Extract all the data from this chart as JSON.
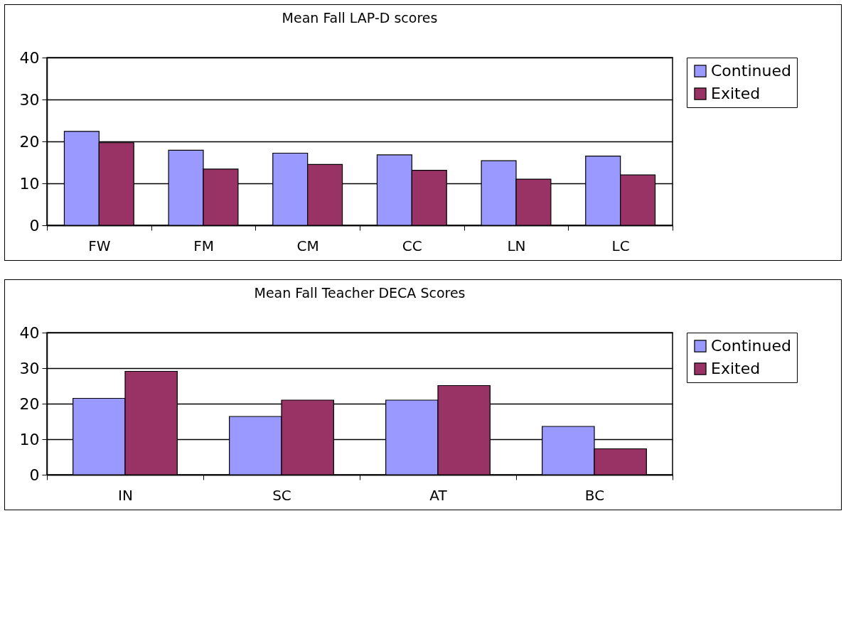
{
  "chart_data": [
    {
      "type": "bar",
      "title": "Mean Fall LAP-D scores",
      "categories": [
        "FW",
        "FM",
        "CM",
        "CC",
        "LN",
        "LC"
      ],
      "series": [
        {
          "name": "Continued",
          "color": "#9999ff",
          "values": [
            22.4,
            17.9,
            17.2,
            16.8,
            15.4,
            16.5
          ]
        },
        {
          "name": "Exited",
          "color": "#993366",
          "values": [
            19.7,
            13.4,
            14.5,
            13.1,
            11.0,
            12.0
          ]
        }
      ],
      "ylim": [
        0,
        40
      ],
      "yticks": [
        0,
        10,
        20,
        30,
        40
      ],
      "grid": "y",
      "legend": "right"
    },
    {
      "type": "bar",
      "title": "Mean Fall Teacher DECA Scores",
      "categories": [
        "IN",
        "SC",
        "AT",
        "BC"
      ],
      "series": [
        {
          "name": "Continued",
          "color": "#9999ff",
          "values": [
            21.5,
            16.4,
            21.0,
            13.6
          ]
        },
        {
          "name": "Exited",
          "color": "#993366",
          "values": [
            29.1,
            21.0,
            25.1,
            7.3
          ]
        }
      ],
      "ylim": [
        0,
        40
      ],
      "yticks": [
        0,
        10,
        20,
        30,
        40
      ],
      "grid": "y",
      "legend": "right"
    }
  ]
}
